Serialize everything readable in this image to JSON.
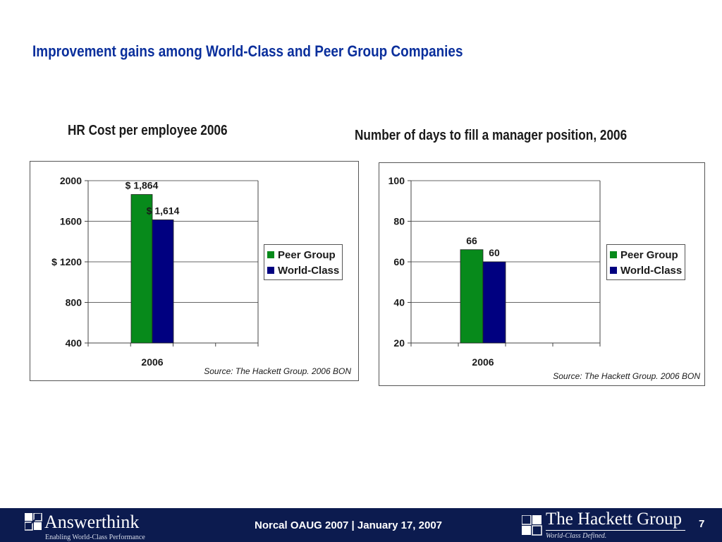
{
  "slide": {
    "title": "Improvement gains among World-Class and Peer Group Companies"
  },
  "colors": {
    "title": "#0a2f9c",
    "peer_group": "#078a1b",
    "world_class": "#000080",
    "footer_bg": "#0c1b4f"
  },
  "chart_data": [
    {
      "type": "bar",
      "title": "HR Cost per employee 2006",
      "categories": [
        "2006"
      ],
      "series": [
        {
          "name": "Peer Group",
          "values": [
            1864
          ],
          "label": "$ 1,864"
        },
        {
          "name": "World-Class",
          "values": [
            1614
          ],
          "label": "$ 1,614"
        }
      ],
      "ylim": [
        400,
        2000
      ],
      "yticks": [
        400,
        800,
        1200,
        1600,
        2000
      ],
      "ytick_labels": [
        "400",
        "800",
        "$ 1200",
        "1600",
        "2000"
      ],
      "grid": true,
      "legend": "right",
      "source": "Source: The Hackett Group. 2006 BON"
    },
    {
      "type": "bar",
      "title": "Number of days to fill a manager position, 2006",
      "categories": [
        "2006"
      ],
      "series": [
        {
          "name": "Peer Group",
          "values": [
            66
          ],
          "label": "66"
        },
        {
          "name": "World-Class",
          "values": [
            60
          ],
          "label": "60"
        }
      ],
      "ylim": [
        20,
        100
      ],
      "yticks": [
        20,
        40,
        60,
        80,
        100
      ],
      "ytick_labels": [
        "20",
        "40",
        "60",
        "80",
        "100"
      ],
      "grid": true,
      "legend": "right",
      "source": "Source: The Hackett Group. 2006 BON"
    }
  ],
  "footer": {
    "left_logo_name": "Answerthink",
    "left_logo_tagline": "Enabling World-Class Performance",
    "center_text": "Norcal OAUG 2007  | January 17, 2007",
    "right_logo_name": "The Hackett Group",
    "right_logo_tagline": "World-Class Defined.",
    "page_number": "7"
  }
}
